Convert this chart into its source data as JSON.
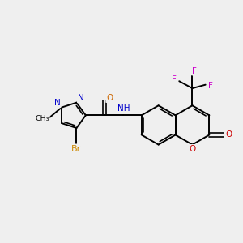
{
  "bg_color": "#efefef",
  "bond_color": "#000000",
  "atom_colors": {
    "N": "#0000cc",
    "O": "#cc0000",
    "O_amide": "#cc6600",
    "Br": "#cc8800",
    "F": "#cc00cc",
    "C": "#000000"
  },
  "figsize": [
    3.0,
    3.0
  ],
  "dpi": 100
}
